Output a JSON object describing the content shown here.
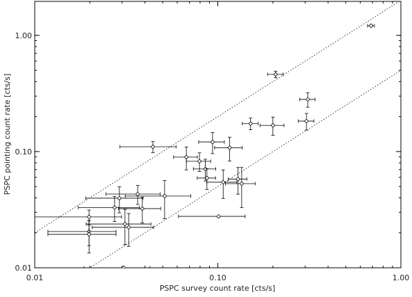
{
  "chart_data": {
    "type": "scatter",
    "x_label": "PSPC survey count rate [cts/s]",
    "y_label": "PSPC pointing count rate [cts/s]",
    "log_x": true,
    "log_y": true,
    "xlim": [
      0.01,
      1.0
    ],
    "ylim": [
      0.01,
      1.96
    ],
    "xticks": [
      0.01,
      {
        "value": 0.1,
        "label": "0.10"
      },
      {
        "value": 1.0,
        "label": "1.00"
      }
    ],
    "yticks": [
      0.01,
      {
        "value": 0.1,
        "label": "0.10"
      },
      {
        "value": 1.0,
        "label": "1.00"
      }
    ],
    "reference_lines": [
      2,
      0.5
    ],
    "color": "#000000",
    "x": [
      0.687,
      0.207,
      0.31,
      0.305,
      0.151,
      0.2,
      0.0442,
      0.0936,
      0.116,
      0.0673,
      0.0794,
      0.0855,
      0.0872,
      0.107,
      0.129,
      0.135,
      0.029,
      0.0365,
      0.0512,
      0.101,
      0.0198,
      0.0198,
      0.0198,
      0.0311,
      0.0326,
      0.0306,
      0.0387,
      0.0273
    ],
    "y": [
      1.21,
      0.462,
      0.281,
      0.183,
      0.174,
      0.168,
      0.11,
      0.121,
      0.108,
      0.0896,
      0.0825,
      0.0709,
      0.0592,
      0.0545,
      0.058,
      0.053,
      0.0397,
      0.0431,
      0.0414,
      0.0277,
      0.0274,
      0.0205,
      0.0194,
      0.0238,
      0.0223,
      0.01,
      0.0323,
      0.033
    ],
    "xerr": [
      0.03,
      0.02,
      0.03,
      0.03,
      0.015,
      0.03,
      0.015,
      0.015,
      0.02,
      0.01,
      0.012,
      0.012,
      0.01,
      0.02,
      0.015,
      0.025,
      0.01,
      0.012,
      0.02,
      0.04,
      0.01,
      0.008,
      0.008,
      0.012,
      0.012,
      0.012,
      0.01,
      0.01
    ],
    "yerr": [
      0.02,
      0.03,
      0.04,
      0.03,
      0.02,
      0.03,
      0.012,
      0.025,
      0.025,
      0.02,
      0.015,
      0.015,
      0.012,
      0.015,
      0.015,
      0.02,
      0.01,
      0.008,
      0.015,
      0.0,
      0.004,
      0.005,
      0.006,
      0.008,
      0.007,
      0.0,
      0.008,
      0.008
    ]
  }
}
